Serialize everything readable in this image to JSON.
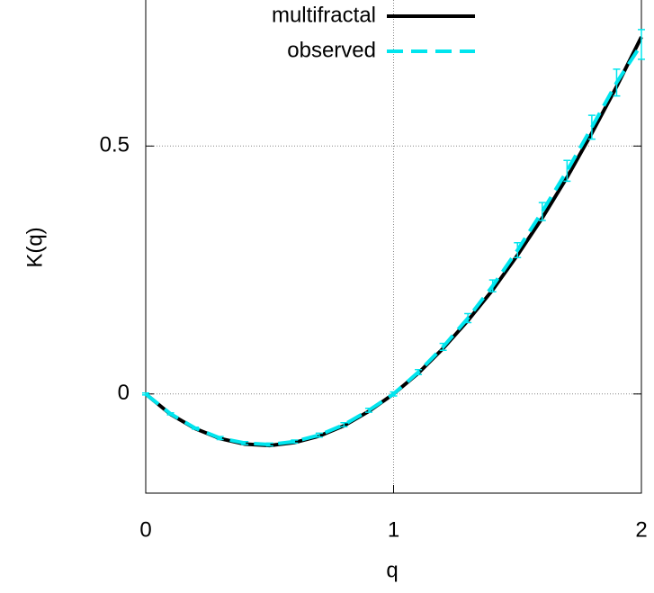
{
  "chart_data": {
    "type": "line",
    "x_label": "q",
    "y_label": "K(q)",
    "x": [
      0,
      0.1,
      0.2,
      0.3,
      0.4,
      0.5,
      0.6,
      0.7,
      0.8,
      0.9,
      1.0,
      1.1,
      1.2,
      1.3,
      1.4,
      1.5,
      1.6,
      1.7,
      1.8,
      1.9,
      2.0
    ],
    "series": [
      {
        "name": "multifractal",
        "color": "#000000",
        "style": "solid",
        "values": [
          0,
          -0.041,
          -0.07,
          -0.09,
          -0.101,
          -0.104,
          -0.098,
          -0.085,
          -0.064,
          -0.035,
          0,
          0.042,
          0.092,
          0.148,
          0.21,
          0.28,
          0.355,
          0.437,
          0.526,
          0.62,
          0.72
        ]
      },
      {
        "name": "observed",
        "color": "#00e5ee",
        "style": "dashed",
        "values": [
          0,
          -0.04,
          -0.069,
          -0.089,
          -0.099,
          -0.102,
          -0.096,
          -0.083,
          -0.062,
          -0.033,
          0,
          0.044,
          0.095,
          0.153,
          0.218,
          0.29,
          0.368,
          0.45,
          0.538,
          0.628,
          0.705
        ],
        "errors": [
          0.002,
          0.002,
          0.002,
          0.003,
          0.003,
          0.003,
          0.003,
          0.004,
          0.004,
          0.004,
          0.004,
          0.005,
          0.007,
          0.009,
          0.012,
          0.015,
          0.018,
          0.021,
          0.024,
          0.027,
          0.03
        ]
      }
    ],
    "xlim": [
      0,
      2
    ],
    "ylim": [
      -0.2,
      0.8
    ],
    "xticks": [
      0,
      1,
      2
    ],
    "yticks": [
      0,
      0.5
    ],
    "grid": true,
    "legend": "top"
  }
}
